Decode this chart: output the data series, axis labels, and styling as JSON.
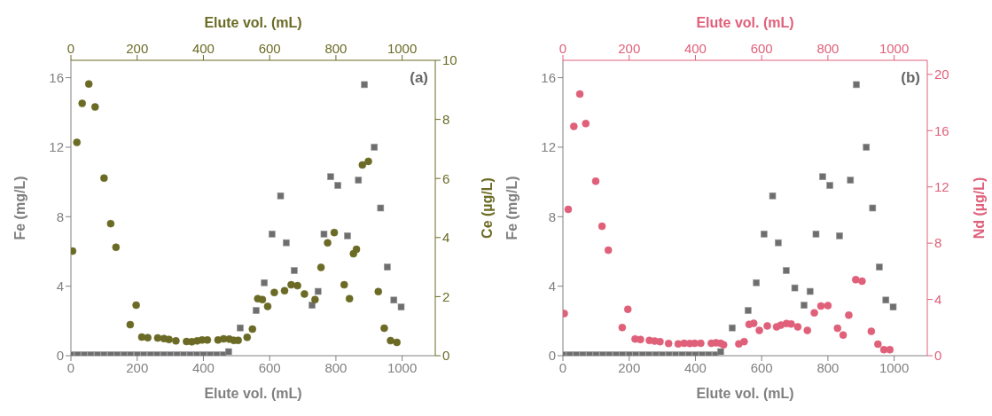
{
  "chart_data": [
    {
      "type": "scatter",
      "xlabel": "Elute vol. (mL)",
      "x2label": "Elute vol. (mL)",
      "ylabel": "Fe (mg/L)",
      "y2label": "Ce (µg/L)",
      "annotations": [
        "(a)"
      ],
      "xlim": [
        0,
        1100
      ],
      "xticks": [
        0,
        200,
        400,
        600,
        800,
        1000
      ],
      "x2lim": [
        0,
        1100
      ],
      "x2ticks": [
        0,
        200,
        400,
        600,
        800,
        1000
      ],
      "ylim": [
        0,
        17
      ],
      "yticks": [
        0,
        4,
        8,
        12,
        16
      ],
      "y2lim": [
        0,
        10
      ],
      "y2ticks": [
        0,
        2,
        4,
        6,
        8,
        10
      ],
      "grid": false,
      "legend": false,
      "series": [
        {
          "type": "scatter",
          "marker": "square",
          "color": "#6e6e6e",
          "x": [
            0,
            20,
            40,
            60,
            80,
            100,
            120,
            140,
            160,
            180,
            200,
            220,
            240,
            260,
            280,
            300,
            320,
            340,
            360,
            380,
            400,
            420,
            440,
            460,
            476,
            511,
            559,
            584,
            607,
            633,
            650,
            674,
            700,
            728,
            746,
            764,
            784,
            806,
            835,
            868,
            886,
            916,
            935,
            955,
            975,
            997
          ],
          "values": [
            0.05,
            0.05,
            0.05,
            0.05,
            0.05,
            0.05,
            0.05,
            0.05,
            0.05,
            0.05,
            0.05,
            0.05,
            0.05,
            0.05,
            0.05,
            0.05,
            0.05,
            0.05,
            0.05,
            0.05,
            0.05,
            0.05,
            0.05,
            0.05,
            0.23,
            1.6,
            2.6,
            4.2,
            7.0,
            9.2,
            6.5,
            4.9,
            null,
            2.9,
            3.7,
            7.0,
            10.3,
            9.8,
            6.9,
            10.1,
            15.6,
            12.0,
            8.5,
            5.1,
            3.2,
            2.8
          ]
        },
        {
          "type": "scatter",
          "marker": "circle",
          "axis": "y2",
          "color": "#6b6b26",
          "x": [
            5,
            18,
            34,
            54,
            73,
            100,
            120,
            136,
            179,
            197,
            214,
            232,
            262,
            281,
            296,
            317,
            349,
            365,
            381,
            396,
            412,
            444,
            461,
            478,
            492,
            505,
            532,
            548,
            564,
            578,
            594,
            614,
            645,
            665,
            684,
            691,
            705,
            710,
            737,
            755,
            775,
            795,
            825,
            841,
            853,
            862,
            880,
            898,
            928,
            946,
            965,
            984
          ],
          "values": [
            3.54,
            7.22,
            8.54,
            9.2,
            8.42,
            6.01,
            4.47,
            3.67,
            1.05,
            1.71,
            0.63,
            0.61,
            0.6,
            0.58,
            0.55,
            0.5,
            0.48,
            0.47,
            0.5,
            0.53,
            0.53,
            0.53,
            0.57,
            0.56,
            0.52,
            0.52,
            0.62,
            0.9,
            1.93,
            1.9,
            1.67,
            2.14,
            2.2,
            2.4,
            2.37,
            null,
            2.09,
            null,
            1.9,
            2.99,
            3.82,
            4.17,
            2.4,
            1.93,
            3.45,
            3.6,
            6.46,
            6.58,
            2.17,
            0.93,
            0.51,
            0.45
          ]
        }
      ]
    },
    {
      "type": "scatter",
      "xlabel": "Elute vol. (mL)",
      "x2label": "Elute vol. (mL)",
      "ylabel": "Fe (mg/L)",
      "y2label": "Nd (µg/L)",
      "annotations": [
        "(b)"
      ],
      "xlim": [
        0,
        1100
      ],
      "xticks": [
        0,
        200,
        400,
        600,
        800,
        1000
      ],
      "x2lim": [
        0,
        1100
      ],
      "x2ticks": [
        0,
        200,
        400,
        600,
        800,
        1000
      ],
      "ylim": [
        0,
        17
      ],
      "yticks": [
        0,
        4,
        8,
        12,
        16
      ],
      "y2lim": [
        0,
        21
      ],
      "y2ticks": [
        0,
        4,
        8,
        12,
        16,
        20
      ],
      "grid": false,
      "legend": false,
      "series": [
        {
          "type": "scatter",
          "marker": "square",
          "color": "#6e6e6e",
          "x": [
            0,
            20,
            40,
            60,
            80,
            100,
            120,
            140,
            160,
            180,
            200,
            220,
            240,
            260,
            280,
            300,
            320,
            340,
            360,
            380,
            400,
            420,
            440,
            460,
            476,
            511,
            559,
            584,
            607,
            633,
            650,
            674,
            700,
            728,
            746,
            764,
            784,
            806,
            835,
            868,
            886,
            916,
            935,
            955,
            975,
            997
          ],
          "values": [
            0.05,
            0.05,
            0.05,
            0.05,
            0.05,
            0.05,
            0.05,
            0.05,
            0.05,
            0.05,
            0.05,
            0.05,
            0.05,
            0.05,
            0.05,
            0.05,
            0.05,
            0.05,
            0.05,
            0.05,
            0.05,
            0.05,
            0.05,
            0.05,
            0.23,
            1.6,
            2.6,
            4.2,
            7.0,
            9.2,
            6.5,
            4.9,
            3.9,
            2.9,
            3.7,
            7.0,
            10.3,
            9.8,
            6.9,
            10.1,
            15.6,
            12.0,
            8.5,
            5.1,
            3.2,
            2.8
          ]
        },
        {
          "type": "scatter",
          "marker": "circle",
          "axis": "y2",
          "color": "#e0607a",
          "x": [
            4,
            16,
            33,
            51,
            69,
            99,
            118,
            137,
            179,
            196,
            218,
            234,
            261,
            277,
            293,
            319,
            348,
            366,
            383,
            398,
            416,
            448,
            462,
            476,
            485,
            531,
            547,
            562,
            576,
            593,
            617,
            645,
            658,
            675,
            689,
            709,
            738,
            759,
            779,
            800,
            829,
            846,
            863,
            884,
            903,
            931,
            951,
            969,
            987
          ],
          "values": [
            3.0,
            10.4,
            16.3,
            18.6,
            16.5,
            12.4,
            9.2,
            7.5,
            2.0,
            3.3,
            1.19,
            1.15,
            1.08,
            1.04,
            1.0,
            0.87,
            0.84,
            0.88,
            0.87,
            0.88,
            0.88,
            0.88,
            0.92,
            0.88,
            0.78,
            0.84,
            1.0,
            2.23,
            2.3,
            1.8,
            2.12,
            2.05,
            2.17,
            2.29,
            2.25,
            2.05,
            1.8,
            3.05,
            3.53,
            3.56,
            1.95,
            1.47,
            2.88,
            5.4,
            5.3,
            1.73,
            0.82,
            0.43,
            0.43
          ]
        }
      ]
    }
  ]
}
